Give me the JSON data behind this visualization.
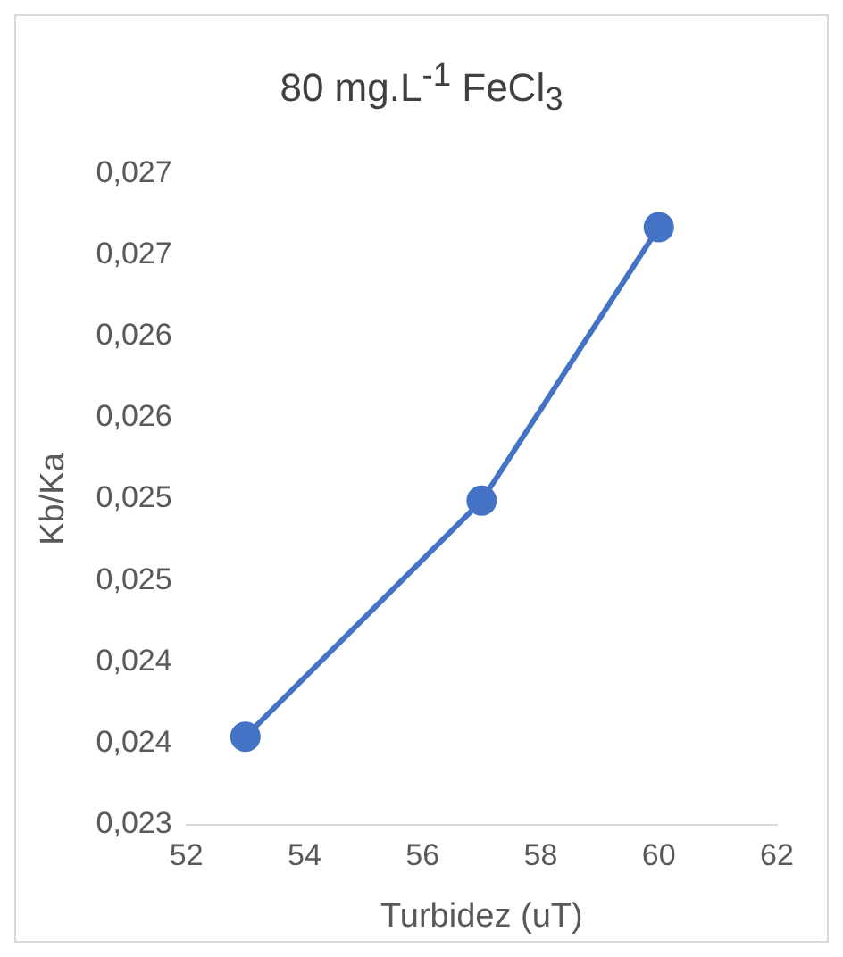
{
  "chart_data": {
    "type": "line",
    "title": "80 mg.L$^{-1}$ FeCl$_{3}$",
    "xlabel": "Turbidez (uT)",
    "ylabel": "Kb/Ka",
    "x": [
      53,
      57,
      60
    ],
    "series": [
      {
        "color": "#4472c4",
        "values": [
          0.02354,
          0.02499,
          0.02667
        ]
      }
    ],
    "xlim": [
      52,
      62
    ],
    "xticks": [
      52,
      54,
      56,
      58,
      60,
      62
    ],
    "ylim": [
      0.023,
      0.027
    ],
    "yticks": [
      {
        "value": 0.023,
        "label": "0,023"
      },
      {
        "value": 0.0235,
        "label": "0,024"
      },
      {
        "value": 0.024,
        "label": "0,024"
      },
      {
        "value": 0.0245,
        "label": "0,025"
      },
      {
        "value": 0.025,
        "label": "0,025"
      },
      {
        "value": 0.0255,
        "label": "0,026"
      },
      {
        "value": 0.026,
        "label": "0,026"
      },
      {
        "value": 0.0265,
        "label": "0,027"
      },
      {
        "value": 0.027,
        "label": "0,027"
      }
    ],
    "grid": false,
    "legend": false,
    "marker": "circle",
    "line_style": "solid"
  }
}
